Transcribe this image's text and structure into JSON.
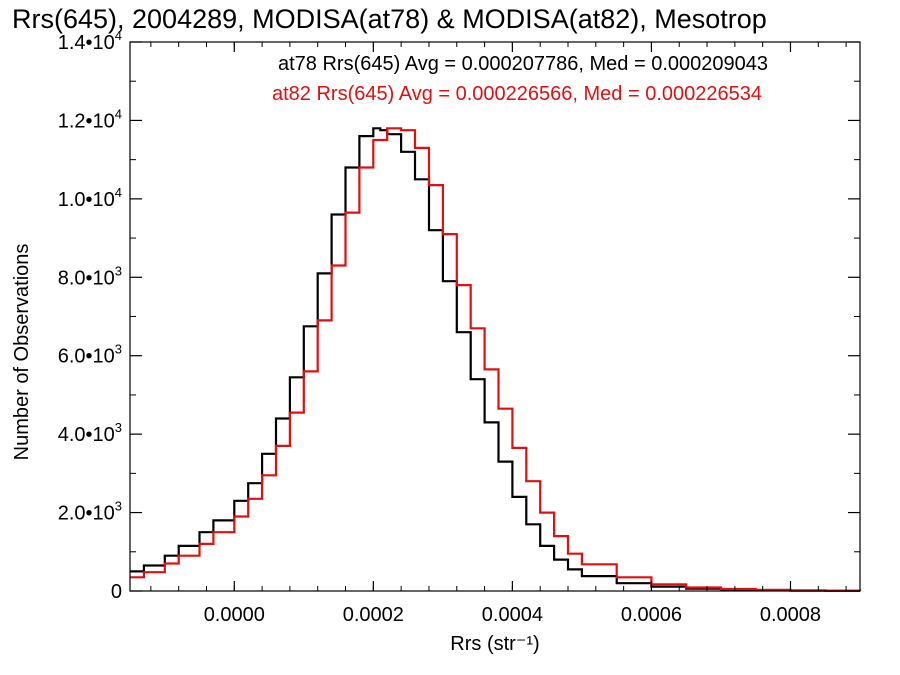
{
  "chart_data": {
    "type": "line",
    "title": "Rrs(645), 2004289, MODISA(at78) & MODISA(at82), Mesotrop",
    "xlabel": "Rrs (str⁻¹)",
    "ylabel": "Number of Observations",
    "xlim": [
      -0.00015,
      0.0009
    ],
    "ylim": [
      0,
      14000
    ],
    "x_ticks": [
      0.0,
      0.0002,
      0.0004,
      0.0006,
      0.0008
    ],
    "x_tick_labels": [
      "0.0000",
      "0.0002",
      "0.0004",
      "0.0006",
      "0.0008"
    ],
    "y_ticks": [
      0,
      2000,
      4000,
      6000,
      8000,
      10000,
      12000,
      14000
    ],
    "y_tick_labels": [
      {
        "mant": "0",
        "exp": ""
      },
      {
        "mant": "2.0•10",
        "exp": "3"
      },
      {
        "mant": "4.0•10",
        "exp": "3"
      },
      {
        "mant": "6.0•10",
        "exp": "3"
      },
      {
        "mant": "8.0•10",
        "exp": "3"
      },
      {
        "mant": "1.0•10",
        "exp": "4"
      },
      {
        "mant": "1.2•10",
        "exp": "4"
      },
      {
        "mant": "1.4•10",
        "exp": "4"
      }
    ],
    "series": [
      {
        "label": "at78 Rrs(645) Avg = 0.000207786, Med = 0.000209043",
        "color": "#000000",
        "x": [
          -0.00015,
          -0.00013,
          -0.0001,
          -8e-05,
          -5e-05,
          -3e-05,
          0.0,
          2e-05,
          4e-05,
          6e-05,
          8e-05,
          0.0001,
          0.00012,
          0.00014,
          0.00016,
          0.00018,
          0.0002,
          0.00021,
          0.00022,
          0.00024,
          0.00026,
          0.00028,
          0.0003,
          0.00032,
          0.00034,
          0.00036,
          0.00038,
          0.0004,
          0.00042,
          0.00044,
          0.00046,
          0.00048,
          0.0005,
          0.00055,
          0.0006,
          0.00065,
          0.0007,
          0.00075,
          0.0008,
          0.00085,
          0.0009
        ],
        "y": [
          500,
          650,
          900,
          1150,
          1500,
          1800,
          2300,
          2750,
          3500,
          4400,
          5450,
          6750,
          8100,
          9600,
          10800,
          11600,
          11800,
          11750,
          11650,
          11200,
          10500,
          9200,
          7900,
          6600,
          5400,
          4300,
          3300,
          2400,
          1700,
          1150,
          800,
          550,
          380,
          200,
          110,
          60,
          35,
          20,
          10,
          5,
          2
        ]
      },
      {
        "label": "at82 Rrs(645) Avg = 0.000226566, Med = 0.000226534",
        "color": "#e01010",
        "x": [
          -0.00015,
          -0.00013,
          -0.0001,
          -8e-05,
          -5e-05,
          -3e-05,
          0.0,
          2e-05,
          4e-05,
          6e-05,
          8e-05,
          0.0001,
          0.00012,
          0.00014,
          0.00016,
          0.00018,
          0.0002,
          0.00022,
          0.00024,
          0.00026,
          0.00028,
          0.0003,
          0.00032,
          0.00034,
          0.00036,
          0.00038,
          0.0004,
          0.00042,
          0.00044,
          0.00046,
          0.00048,
          0.0005,
          0.00055,
          0.0006,
          0.00065,
          0.0007,
          0.00075,
          0.0008,
          0.00085,
          0.0009
        ],
        "y": [
          350,
          480,
          700,
          900,
          1200,
          1500,
          1900,
          2350,
          2950,
          3700,
          4550,
          5600,
          6900,
          8300,
          9650,
          10800,
          11500,
          11800,
          11750,
          11300,
          10350,
          9100,
          7800,
          6700,
          5650,
          4650,
          3650,
          2800,
          2000,
          1400,
          950,
          680,
          350,
          170,
          90,
          50,
          28,
          15,
          8,
          4
        ]
      }
    ],
    "grid": false,
    "legend_position": "top-right"
  }
}
